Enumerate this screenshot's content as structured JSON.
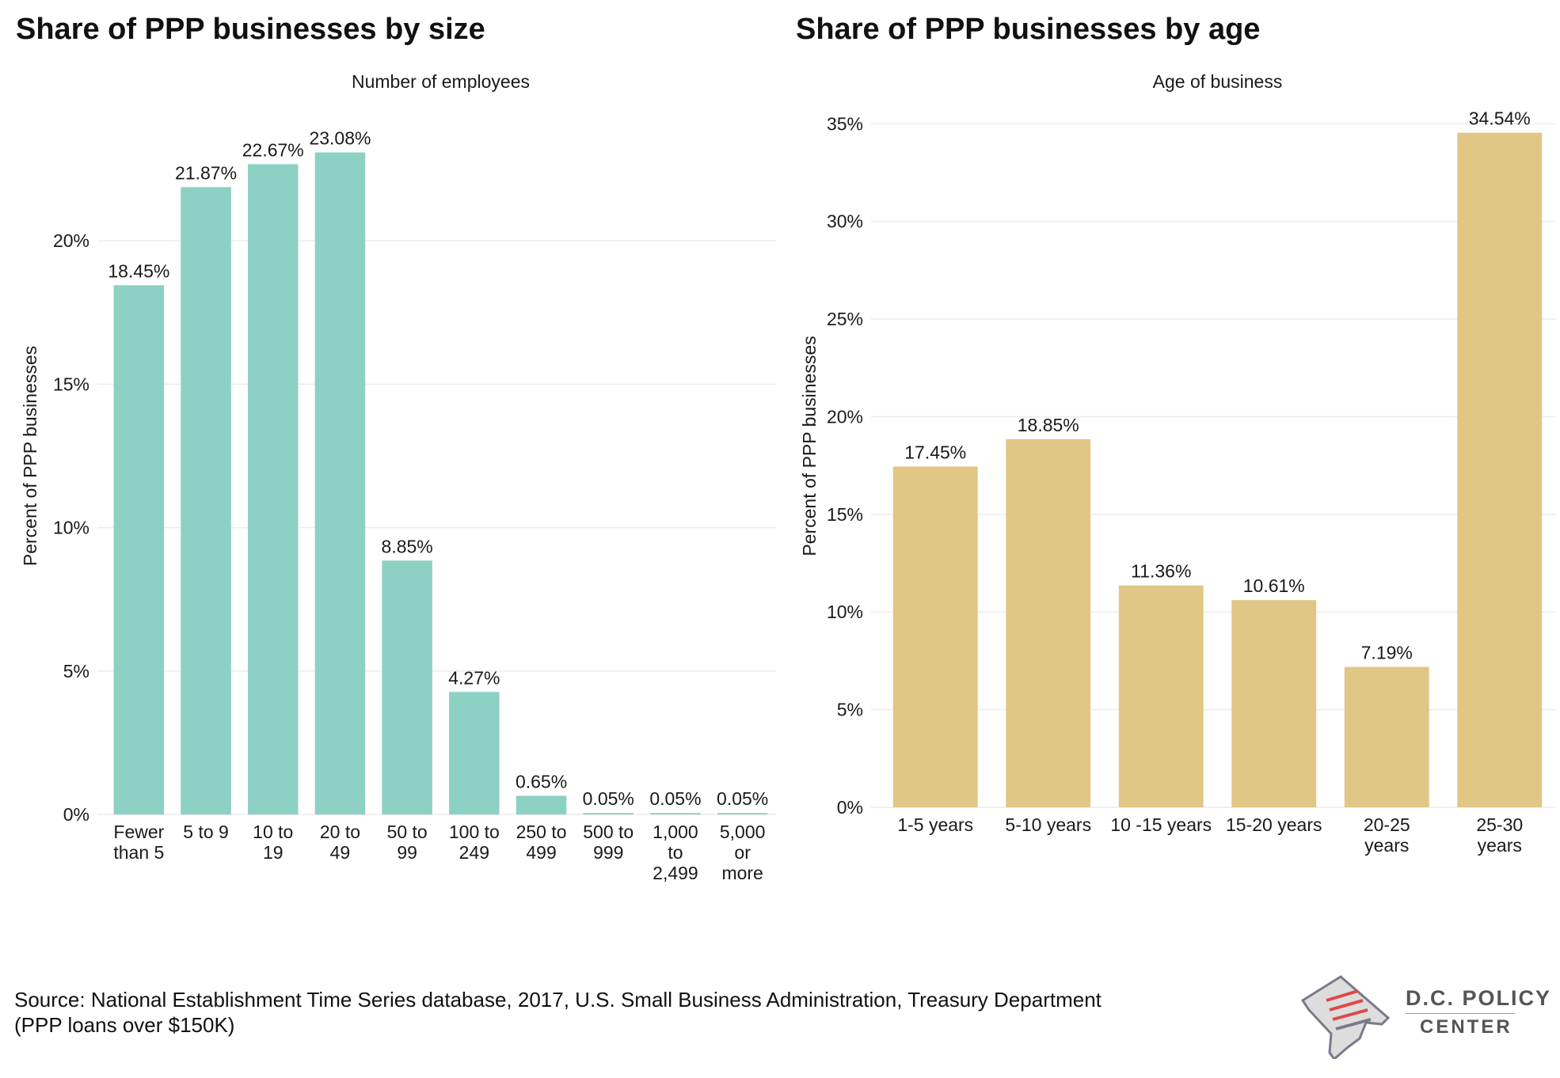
{
  "colors": {
    "teal": "#8dd0c4",
    "gold": "#e1c785",
    "grid": "#ececec"
  },
  "titles": {
    "left": "Share of PPP businesses by size",
    "right": "Share of PPP businesses by age"
  },
  "source": {
    "line1": "Source: National Establishment Time Series database, 2017, U.S. Small Business Administration, Treasury Department",
    "line2": "(PPP loans over $150K)"
  },
  "logo": {
    "line1": "D.C. POLICY",
    "line2": "CENTER"
  },
  "chart_data": [
    {
      "type": "bar",
      "title": "Share of PPP businesses by size",
      "subtitle": "Number of employees",
      "ylabel": "Percent of PPP businesses",
      "ylim": [
        0,
        25
      ],
      "yticks": [
        0,
        5,
        10,
        15,
        20
      ],
      "ytick_labels": [
        "0%",
        "5%",
        "10%",
        "15%",
        "20%"
      ],
      "grid": true,
      "color": "#8dd0c4",
      "categories": [
        [
          "Fewer",
          "than 5"
        ],
        [
          "5 to 9"
        ],
        [
          "10 to",
          "19"
        ],
        [
          "20 to",
          "49"
        ],
        [
          "50 to",
          "99"
        ],
        [
          "100 to",
          "249"
        ],
        [
          "250 to",
          "499"
        ],
        [
          "500 to",
          "999"
        ],
        [
          "1,000",
          "to",
          "2,499"
        ],
        [
          "5,000",
          "or",
          "more"
        ]
      ],
      "values": [
        18.45,
        21.87,
        22.67,
        23.08,
        8.85,
        4.27,
        0.65,
        0.05,
        0.05,
        0.05
      ],
      "value_labels": [
        "18.45%",
        "21.87%",
        "22.67%",
        "23.08%",
        "8.85%",
        "4.27%",
        "0.65%",
        "0.05%",
        "0.05%",
        "0.05%"
      ]
    },
    {
      "type": "bar",
      "title": "Share of PPP businesses by age",
      "subtitle": "Age of business",
      "ylabel": "Percent of PPP businesses",
      "ylim": [
        0,
        37
      ],
      "yticks": [
        0,
        5,
        10,
        15,
        20,
        25,
        30,
        35
      ],
      "ytick_labels": [
        "0%",
        "5%",
        "10%",
        "15%",
        "20%",
        "25%",
        "30%",
        "35%"
      ],
      "grid": true,
      "color": "#e1c785",
      "categories": [
        [
          "1-5 years"
        ],
        [
          "5-10 years"
        ],
        [
          "10 -15 years"
        ],
        [
          "15-20 years"
        ],
        [
          "20-25",
          "years"
        ],
        [
          "25-30",
          "years"
        ]
      ],
      "values": [
        17.45,
        18.85,
        11.36,
        10.61,
        7.19,
        34.54
      ],
      "value_labels": [
        "17.45%",
        "18.85%",
        "11.36%",
        "10.61%",
        "7.19%",
        "34.54%"
      ]
    }
  ]
}
